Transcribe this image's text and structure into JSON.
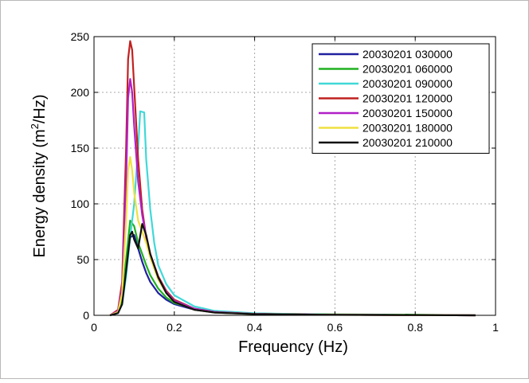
{
  "chart_data": {
    "type": "line",
    "xlabel": "Frequency (Hz)",
    "ylabel_main": "Energy density (m",
    "ylabel_sup": "2",
    "ylabel_tail": "/Hz)",
    "xlim": [
      0,
      1
    ],
    "ylim": [
      0,
      250
    ],
    "xticks": [
      0,
      0.2,
      0.4,
      0.6,
      0.8,
      1
    ],
    "xtick_labels": [
      "0",
      "0.2",
      "0.4",
      "0.6",
      "0.8",
      "1"
    ],
    "yticks": [
      0,
      50,
      100,
      150,
      200,
      250
    ],
    "ytick_labels": [
      "0",
      "50",
      "100",
      "150",
      "200",
      "250"
    ],
    "grid": true,
    "legend_position": "top-right",
    "series": [
      {
        "name": "20030201 030000",
        "color": "#2020a0",
        "x": [
          0.04,
          0.06,
          0.07,
          0.08,
          0.09,
          0.1,
          0.11,
          0.12,
          0.13,
          0.14,
          0.16,
          0.18,
          0.2,
          0.25,
          0.3,
          0.4,
          0.6,
          0.8,
          0.95
        ],
        "y": [
          0,
          2,
          12,
          40,
          70,
          72,
          60,
          48,
          38,
          30,
          20,
          14,
          10,
          5,
          2.5,
          1.2,
          0.5,
          0.2,
          0
        ]
      },
      {
        "name": "20030201 060000",
        "color": "#20b020",
        "x": [
          0.04,
          0.06,
          0.07,
          0.08,
          0.09,
          0.1,
          0.11,
          0.12,
          0.13,
          0.14,
          0.16,
          0.18,
          0.2,
          0.25,
          0.3,
          0.4,
          0.6,
          0.8,
          0.95
        ],
        "y": [
          0,
          3,
          15,
          50,
          85,
          80,
          65,
          55,
          45,
          36,
          24,
          16,
          11,
          6,
          3,
          1.5,
          0.8,
          0.6,
          0
        ]
      },
      {
        "name": "20030201 090000",
        "color": "#40d8d8",
        "x": [
          0.04,
          0.06,
          0.07,
          0.08,
          0.09,
          0.1,
          0.11,
          0.115,
          0.125,
          0.13,
          0.14,
          0.15,
          0.16,
          0.18,
          0.2,
          0.25,
          0.3,
          0.4,
          0.6,
          0.8,
          0.95
        ],
        "y": [
          0,
          2,
          10,
          35,
          70,
          100,
          150,
          183,
          182,
          140,
          95,
          65,
          45,
          28,
          18,
          8,
          4,
          1.8,
          0.6,
          0.3,
          0
        ]
      },
      {
        "name": "20030201 120000",
        "color": "#c02020",
        "x": [
          0.04,
          0.06,
          0.07,
          0.08,
          0.085,
          0.09,
          0.095,
          0.1,
          0.11,
          0.12,
          0.13,
          0.14,
          0.16,
          0.18,
          0.2,
          0.25,
          0.3,
          0.4,
          0.6,
          0.8,
          0.95
        ],
        "y": [
          0,
          5,
          30,
          150,
          230,
          246,
          238,
          205,
          140,
          95,
          70,
          55,
          35,
          22,
          14,
          6,
          3,
          1.3,
          0.5,
          0.2,
          0
        ]
      },
      {
        "name": "20030201 150000",
        "color": "#b020c8",
        "x": [
          0.04,
          0.06,
          0.07,
          0.08,
          0.085,
          0.09,
          0.095,
          0.1,
          0.11,
          0.12,
          0.13,
          0.14,
          0.16,
          0.18,
          0.2,
          0.25,
          0.3,
          0.4,
          0.6,
          0.8,
          0.95
        ],
        "y": [
          0,
          4,
          25,
          120,
          195,
          212,
          200,
          170,
          120,
          90,
          70,
          55,
          34,
          21,
          13,
          6,
          3,
          1.2,
          0.5,
          0.2,
          0
        ]
      },
      {
        "name": "20030201 180000",
        "color": "#f0e040",
        "x": [
          0.04,
          0.06,
          0.07,
          0.08,
          0.085,
          0.09,
          0.095,
          0.1,
          0.11,
          0.12,
          0.13,
          0.14,
          0.16,
          0.18,
          0.2,
          0.25,
          0.3,
          0.4,
          0.6,
          0.8,
          0.95
        ],
        "y": [
          0,
          3,
          20,
          85,
          130,
          142,
          130,
          110,
          85,
          75,
          65,
          52,
          32,
          20,
          12,
          5,
          2.5,
          1.1,
          0.4,
          0.2,
          0
        ]
      },
      {
        "name": "20030201 210000",
        "color": "#101010",
        "x": [
          0.04,
          0.06,
          0.07,
          0.08,
          0.09,
          0.095,
          0.1,
          0.11,
          0.12,
          0.13,
          0.14,
          0.16,
          0.18,
          0.2,
          0.25,
          0.3,
          0.4,
          0.6,
          0.8,
          0.95
        ],
        "y": [
          0,
          2,
          10,
          40,
          72,
          75,
          68,
          60,
          82,
          72,
          55,
          34,
          20,
          12,
          5,
          2.5,
          1.1,
          0.4,
          0.2,
          0
        ]
      }
    ]
  }
}
